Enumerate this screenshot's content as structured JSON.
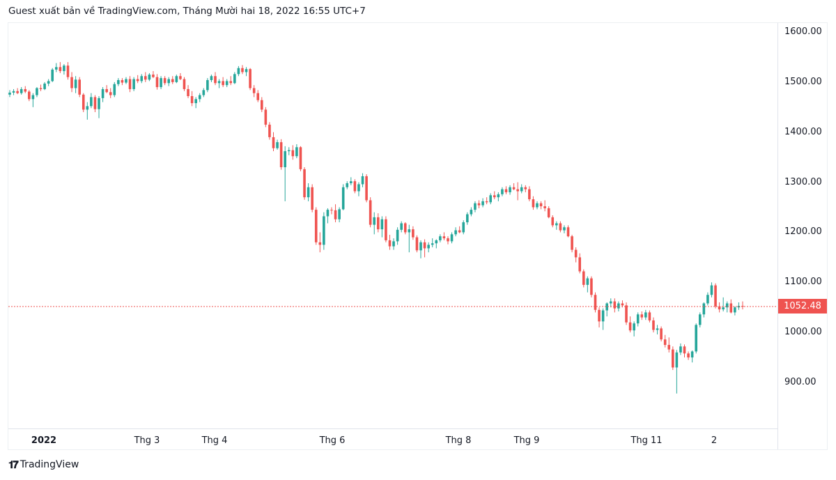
{
  "header": {
    "title": "Guest xuất bản về TradingView.com, Tháng Mười hai 18, 2022 16:55 UTC+7"
  },
  "footer": {
    "logo_mark": "17",
    "logo_text": "TradingView"
  },
  "colors": {
    "up": "#26a69a",
    "down": "#ef5350",
    "price_line": "#ef5350"
  },
  "chart_data": {
    "type": "candlestick",
    "title": "",
    "ylim": [
      820,
      1620
    ],
    "y_ticks": [
      "1600.00",
      "1500.00",
      "1400.00",
      "1300.00",
      "1200.00",
      "1100.00",
      "1000.00",
      "900.00"
    ],
    "x_ticks": [
      "2022",
      "Thg 3",
      "Thg 4",
      "Thg 6",
      "Thg 8",
      "Thg 9",
      "Thg 11",
      "2"
    ],
    "last_price": "1052.48",
    "candles": [
      [
        1475,
        1484,
        1470,
        1479
      ],
      [
        1479,
        1486,
        1474,
        1482
      ],
      [
        1482,
        1488,
        1476,
        1478
      ],
      [
        1478,
        1490,
        1475,
        1486
      ],
      [
        1486,
        1492,
        1478,
        1481
      ],
      [
        1481,
        1484,
        1462,
        1466
      ],
      [
        1466,
        1478,
        1450,
        1474
      ],
      [
        1474,
        1490,
        1470,
        1488
      ],
      [
        1488,
        1495,
        1482,
        1486
      ],
      [
        1486,
        1500,
        1484,
        1497
      ],
      [
        1497,
        1506,
        1492,
        1502
      ],
      [
        1502,
        1528,
        1500,
        1525
      ],
      [
        1525,
        1538,
        1520,
        1530
      ],
      [
        1530,
        1540,
        1518,
        1522
      ],
      [
        1522,
        1536,
        1515,
        1533
      ],
      [
        1533,
        1540,
        1505,
        1510
      ],
      [
        1510,
        1520,
        1480,
        1488
      ],
      [
        1488,
        1512,
        1478,
        1505
      ],
      [
        1505,
        1510,
        1470,
        1475
      ],
      [
        1475,
        1478,
        1440,
        1445
      ],
      [
        1445,
        1460,
        1425,
        1452
      ],
      [
        1452,
        1478,
        1448,
        1470
      ],
      [
        1470,
        1474,
        1440,
        1446
      ],
      [
        1446,
        1472,
        1428,
        1468
      ],
      [
        1468,
        1490,
        1460,
        1486
      ],
      [
        1486,
        1494,
        1478,
        1480
      ],
      [
        1480,
        1488,
        1468,
        1474
      ],
      [
        1474,
        1500,
        1470,
        1496
      ],
      [
        1496,
        1508,
        1492,
        1504
      ],
      [
        1504,
        1508,
        1494,
        1499
      ],
      [
        1499,
        1510,
        1496,
        1506
      ],
      [
        1506,
        1512,
        1480,
        1486
      ],
      [
        1486,
        1510,
        1482,
        1506
      ],
      [
        1506,
        1514,
        1498,
        1502
      ],
      [
        1502,
        1516,
        1498,
        1512
      ],
      [
        1512,
        1520,
        1500,
        1505
      ],
      [
        1505,
        1518,
        1502,
        1515
      ],
      [
        1515,
        1522,
        1508,
        1510
      ],
      [
        1510,
        1516,
        1485,
        1490
      ],
      [
        1490,
        1512,
        1486,
        1508
      ],
      [
        1508,
        1512,
        1494,
        1498
      ],
      [
        1498,
        1510,
        1492,
        1506
      ],
      [
        1506,
        1512,
        1496,
        1500
      ],
      [
        1500,
        1515,
        1498,
        1512
      ],
      [
        1512,
        1518,
        1504,
        1506
      ],
      [
        1506,
        1510,
        1482,
        1486
      ],
      [
        1486,
        1494,
        1468,
        1472
      ],
      [
        1472,
        1482,
        1452,
        1458
      ],
      [
        1458,
        1470,
        1448,
        1466
      ],
      [
        1466,
        1478,
        1460,
        1474
      ],
      [
        1474,
        1488,
        1470,
        1484
      ],
      [
        1484,
        1508,
        1480,
        1504
      ],
      [
        1504,
        1515,
        1500,
        1512
      ],
      [
        1512,
        1520,
        1494,
        1498
      ],
      [
        1498,
        1506,
        1488,
        1502
      ],
      [
        1502,
        1510,
        1490,
        1494
      ],
      [
        1494,
        1506,
        1490,
        1502
      ],
      [
        1502,
        1512,
        1494,
        1498
      ],
      [
        1498,
        1520,
        1496,
        1516
      ],
      [
        1516,
        1532,
        1512,
        1528
      ],
      [
        1528,
        1534,
        1516,
        1520
      ],
      [
        1520,
        1530,
        1512,
        1526
      ],
      [
        1526,
        1528,
        1484,
        1488
      ],
      [
        1488,
        1494,
        1470,
        1478
      ],
      [
        1478,
        1484,
        1460,
        1464
      ],
      [
        1464,
        1470,
        1440,
        1445
      ],
      [
        1445,
        1450,
        1410,
        1415
      ],
      [
        1415,
        1420,
        1385,
        1390
      ],
      [
        1390,
        1400,
        1362,
        1368
      ],
      [
        1368,
        1385,
        1365,
        1380
      ],
      [
        1380,
        1386,
        1325,
        1330
      ],
      [
        1330,
        1372,
        1262,
        1362
      ],
      [
        1362,
        1370,
        1354,
        1364
      ],
      [
        1364,
        1374,
        1345,
        1352
      ],
      [
        1352,
        1376,
        1348,
        1370
      ],
      [
        1370,
        1372,
        1322,
        1326
      ],
      [
        1326,
        1330,
        1265,
        1270
      ],
      [
        1270,
        1298,
        1262,
        1290
      ],
      [
        1290,
        1296,
        1240,
        1245
      ],
      [
        1245,
        1250,
        1175,
        1180
      ],
      [
        1180,
        1200,
        1160,
        1175
      ],
      [
        1175,
        1240,
        1165,
        1232
      ],
      [
        1232,
        1248,
        1218,
        1245
      ],
      [
        1245,
        1250,
        1236,
        1244
      ],
      [
        1244,
        1256,
        1220,
        1226
      ],
      [
        1226,
        1250,
        1220,
        1246
      ],
      [
        1246,
        1296,
        1244,
        1290
      ],
      [
        1290,
        1302,
        1286,
        1298
      ],
      [
        1298,
        1310,
        1294,
        1302
      ],
      [
        1302,
        1306,
        1278,
        1282
      ],
      [
        1282,
        1300,
        1272,
        1296
      ],
      [
        1296,
        1318,
        1290,
        1312
      ],
      [
        1312,
        1316,
        1260,
        1264
      ],
      [
        1264,
        1270,
        1210,
        1215
      ],
      [
        1215,
        1240,
        1196,
        1230
      ],
      [
        1230,
        1238,
        1200,
        1206
      ],
      [
        1206,
        1232,
        1190,
        1226
      ],
      [
        1226,
        1232,
        1180,
        1184
      ],
      [
        1184,
        1195,
        1165,
        1172
      ],
      [
        1172,
        1188,
        1165,
        1182
      ],
      [
        1182,
        1210,
        1175,
        1205
      ],
      [
        1205,
        1222,
        1200,
        1218
      ],
      [
        1218,
        1220,
        1196,
        1200
      ],
      [
        1200,
        1215,
        1160,
        1206
      ],
      [
        1206,
        1212,
        1185,
        1190
      ],
      [
        1190,
        1194,
        1160,
        1164
      ],
      [
        1164,
        1184,
        1148,
        1180
      ],
      [
        1180,
        1186,
        1150,
        1168
      ],
      [
        1168,
        1180,
        1160,
        1175
      ],
      [
        1175,
        1188,
        1170,
        1178
      ],
      [
        1178,
        1186,
        1168,
        1184
      ],
      [
        1184,
        1196,
        1180,
        1192
      ],
      [
        1192,
        1200,
        1184,
        1188
      ],
      [
        1188,
        1192,
        1176,
        1182
      ],
      [
        1182,
        1200,
        1178,
        1196
      ],
      [
        1196,
        1210,
        1192,
        1204
      ],
      [
        1204,
        1212,
        1198,
        1200
      ],
      [
        1200,
        1224,
        1196,
        1220
      ],
      [
        1220,
        1240,
        1215,
        1236
      ],
      [
        1236,
        1250,
        1232,
        1245
      ],
      [
        1245,
        1262,
        1240,
        1258
      ],
      [
        1258,
        1264,
        1248,
        1254
      ],
      [
        1254,
        1268,
        1250,
        1262
      ],
      [
        1262,
        1270,
        1256,
        1260
      ],
      [
        1260,
        1278,
        1256,
        1274
      ],
      [
        1274,
        1282,
        1266,
        1270
      ],
      [
        1270,
        1280,
        1262,
        1276
      ],
      [
        1276,
        1290,
        1272,
        1286
      ],
      [
        1286,
        1292,
        1276,
        1280
      ],
      [
        1280,
        1294,
        1275,
        1290
      ],
      [
        1290,
        1298,
        1284,
        1286
      ],
      [
        1286,
        1300,
        1264,
        1282
      ],
      [
        1282,
        1296,
        1278,
        1290
      ],
      [
        1290,
        1294,
        1280,
        1286
      ],
      [
        1286,
        1292,
        1262,
        1266
      ],
      [
        1266,
        1272,
        1245,
        1250
      ],
      [
        1250,
        1262,
        1246,
        1258
      ],
      [
        1258,
        1262,
        1246,
        1252
      ],
      [
        1252,
        1264,
        1242,
        1248
      ],
      [
        1248,
        1252,
        1228,
        1230
      ],
      [
        1230,
        1234,
        1210,
        1214
      ],
      [
        1214,
        1222,
        1205,
        1218
      ],
      [
        1218,
        1222,
        1200,
        1204
      ],
      [
        1204,
        1214,
        1198,
        1210
      ],
      [
        1210,
        1214,
        1190,
        1192
      ],
      [
        1192,
        1195,
        1160,
        1165
      ],
      [
        1165,
        1170,
        1140,
        1150
      ],
      [
        1150,
        1158,
        1118,
        1122
      ],
      [
        1122,
        1126,
        1090,
        1095
      ],
      [
        1095,
        1112,
        1080,
        1108
      ],
      [
        1108,
        1112,
        1070,
        1075
      ],
      [
        1075,
        1080,
        1040,
        1045
      ],
      [
        1045,
        1050,
        1010,
        1022
      ],
      [
        1022,
        1048,
        1005,
        1044
      ],
      [
        1044,
        1060,
        1032,
        1058
      ],
      [
        1058,
        1068,
        1050,
        1062
      ],
      [
        1062,
        1068,
        1040,
        1048
      ],
      [
        1048,
        1062,
        1042,
        1058
      ],
      [
        1058,
        1064,
        1050,
        1054
      ],
      [
        1054,
        1060,
        1015,
        1020
      ],
      [
        1020,
        1032,
        1000,
        1004
      ],
      [
        1004,
        1022,
        992,
        1018
      ],
      [
        1018,
        1040,
        1012,
        1036
      ],
      [
        1036,
        1042,
        1025,
        1030
      ],
      [
        1030,
        1045,
        1025,
        1040
      ],
      [
        1040,
        1044,
        1020,
        1024
      ],
      [
        1024,
        1030,
        1000,
        1005
      ],
      [
        1005,
        1015,
        996,
        1008
      ],
      [
        1008,
        1012,
        982,
        986
      ],
      [
        986,
        995,
        970,
        975
      ],
      [
        975,
        990,
        960,
        966
      ],
      [
        966,
        972,
        925,
        930
      ],
      [
        930,
        965,
        878,
        960
      ],
      [
        960,
        978,
        955,
        972
      ],
      [
        972,
        976,
        950,
        958
      ],
      [
        958,
        962,
        945,
        950
      ],
      [
        950,
        964,
        940,
        962
      ],
      [
        962,
        1018,
        958,
        1015
      ],
      [
        1015,
        1040,
        1010,
        1036
      ],
      [
        1036,
        1060,
        1030,
        1058
      ],
      [
        1058,
        1080,
        1054,
        1075
      ],
      [
        1075,
        1100,
        1070,
        1094
      ],
      [
        1094,
        1098,
        1048,
        1052
      ],
      [
        1052,
        1060,
        1040,
        1046
      ],
      [
        1046,
        1070,
        1042,
        1050
      ],
      [
        1050,
        1062,
        1040,
        1058
      ],
      [
        1058,
        1066,
        1038,
        1040
      ],
      [
        1040,
        1052,
        1034,
        1050
      ],
      [
        1050,
        1060,
        1045,
        1053
      ],
      [
        1053,
        1062,
        1046,
        1052.48
      ]
    ]
  }
}
